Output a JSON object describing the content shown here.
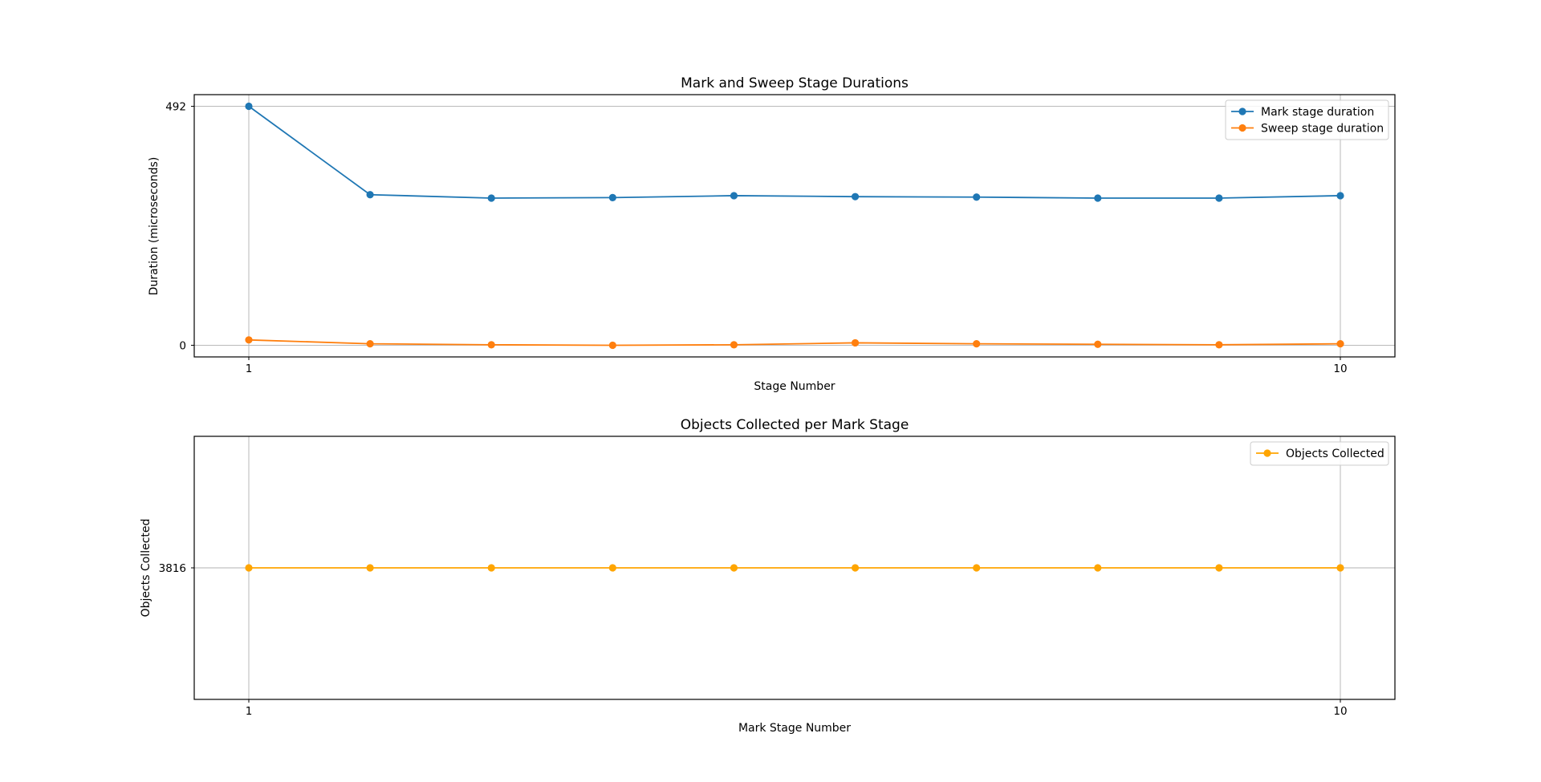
{
  "chart_data": [
    {
      "type": "line",
      "title": "Mark and Sweep Stage Durations",
      "xlabel": "Stage Number",
      "ylabel": "Duration (microseconds)",
      "x": [
        1,
        2,
        3,
        4,
        5,
        6,
        7,
        8,
        9,
        10
      ],
      "xticks": [
        "1",
        "10"
      ],
      "yticks": [
        "0",
        "492"
      ],
      "xlim": [
        0.55,
        10.45
      ],
      "ylim": [
        -24,
        516
      ],
      "grid": true,
      "legend_position": "top-right",
      "series": [
        {
          "name": "Mark stage duration",
          "color": "#1f77b4",
          "values": [
            492,
            310,
            303,
            304,
            308,
            306,
            305,
            303,
            303,
            308
          ]
        },
        {
          "name": "Sweep stage duration",
          "color": "#ff7f0e",
          "values": [
            11,
            3,
            1,
            0,
            1,
            5,
            3,
            2,
            1,
            3
          ]
        }
      ]
    },
    {
      "type": "line",
      "title": "Objects Collected per Mark Stage",
      "xlabel": "Mark Stage Number",
      "ylabel": "Objects Collected",
      "x": [
        1,
        2,
        3,
        4,
        5,
        6,
        7,
        8,
        9,
        10
      ],
      "xticks": [
        "1",
        "10"
      ],
      "yticks": [
        "3816"
      ],
      "xlim": [
        0.55,
        10.45
      ],
      "ylim": [
        3815.945,
        3816.055
      ],
      "grid": true,
      "legend_position": "top-right",
      "series": [
        {
          "name": "Objects Collected",
          "color": "#ffa500",
          "values": [
            3816,
            3816,
            3816,
            3816,
            3816,
            3816,
            3816,
            3816,
            3816,
            3816
          ]
        }
      ]
    }
  ]
}
